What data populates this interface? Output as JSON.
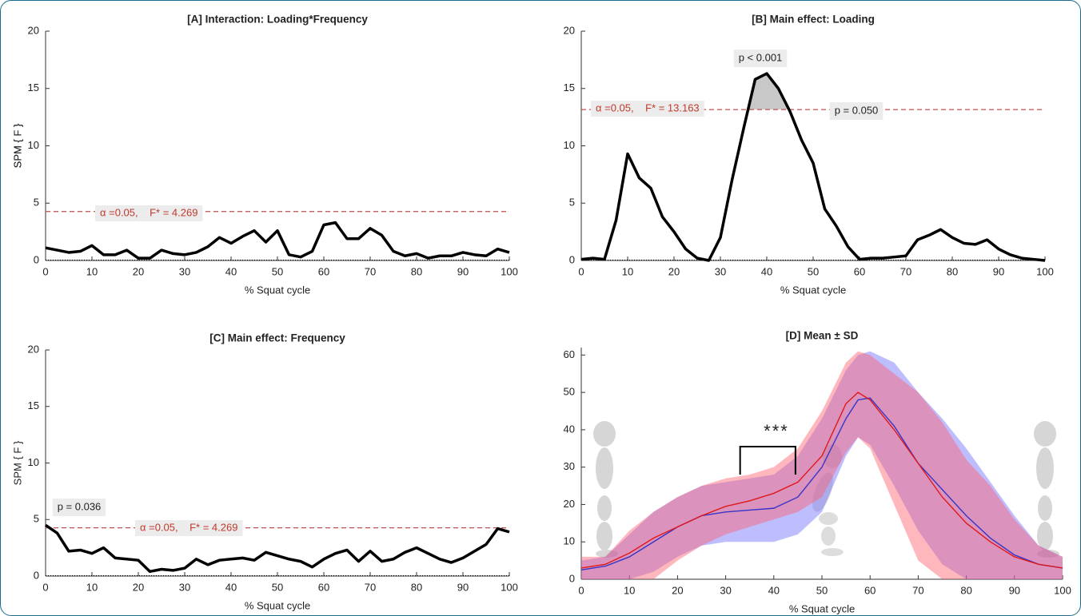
{
  "chart_data": [
    {
      "type": "line",
      "title": "[A] Interaction: Loading*Frequency",
      "xlabel": "% Squat cycle",
      "ylabel": "SPM { F }",
      "x": [
        0,
        2.5,
        5,
        7.5,
        10,
        12.5,
        15,
        17.5,
        20,
        22.5,
        25,
        27.5,
        30,
        32.5,
        35,
        37.5,
        40,
        42.5,
        45,
        47.5,
        50,
        52.5,
        55,
        57.5,
        60,
        62.5,
        65,
        67.5,
        70,
        72.5,
        75,
        77.5,
        80,
        82.5,
        85,
        87.5,
        90,
        92.5,
        95,
        97.5,
        100
      ],
      "values": [
        1.1,
        0.9,
        0.7,
        0.8,
        1.3,
        0.5,
        0.5,
        0.9,
        0.2,
        0.2,
        0.9,
        0.6,
        0.5,
        0.7,
        1.2,
        2.0,
        1.5,
        2.1,
        2.6,
        1.6,
        2.6,
        0.5,
        0.3,
        0.8,
        3.1,
        3.3,
        1.9,
        1.9,
        2.8,
        2.2,
        0.8,
        0.4,
        0.6,
        0.2,
        0.4,
        0.4,
        0.7,
        0.5,
        0.4,
        1.0,
        0.7
      ],
      "color": "#000000",
      "threshold": 4.269,
      "threshold_label": "α =0.05,    F* = 4.269",
      "annotations": [],
      "xlim": [
        0,
        100
      ],
      "xticks": [
        0,
        10,
        20,
        30,
        40,
        50,
        60,
        70,
        80,
        90,
        100
      ],
      "ylim": [
        0,
        20
      ],
      "yticks": [
        0,
        5,
        10,
        15,
        20
      ]
    },
    {
      "type": "line",
      "title": "[B] Main effect: Loading",
      "xlabel": "% Squat cycle",
      "ylabel": "SPM { F }",
      "x": [
        0,
        2.5,
        5,
        7.5,
        10,
        12.5,
        15,
        17.5,
        20,
        22.5,
        25,
        27.5,
        30,
        32.5,
        35,
        37.5,
        40,
        42.5,
        45,
        47.5,
        50,
        52.5,
        55,
        57.5,
        60,
        62.5,
        65,
        67.5,
        70,
        72.5,
        75,
        77.5,
        80,
        82.5,
        85,
        87.5,
        90,
        92.5,
        95,
        97.5,
        100
      ],
      "values": [
        0.1,
        0.2,
        0.1,
        3.5,
        9.3,
        7.2,
        6.3,
        3.8,
        2.5,
        1.0,
        0.2,
        0.0,
        2.0,
        7.0,
        11.5,
        15.8,
        16.3,
        15.0,
        13.0,
        10.5,
        8.5,
        4.5,
        3.0,
        1.2,
        0.1,
        0.2,
        0.2,
        0.3,
        0.4,
        1.8,
        2.2,
        2.7,
        2.0,
        1.5,
        1.4,
        1.8,
        1.0,
        0.5,
        0.2,
        0.1,
        0.0
      ],
      "color": "#000000",
      "threshold": 13.163,
      "threshold_label": "α =0.05,    F* = 13.163",
      "annotations": [
        "p < 0.001",
        "p = 0.050"
      ],
      "xlim": [
        0,
        100
      ],
      "xticks": [
        0,
        10,
        20,
        30,
        40,
        50,
        60,
        70,
        80,
        90,
        100
      ],
      "ylim": [
        0,
        20
      ],
      "yticks": [
        0,
        5,
        10,
        15,
        20
      ]
    },
    {
      "type": "line",
      "title": "[C] Main effect: Frequency",
      "xlabel": "% Squat cycle",
      "ylabel": "SPM { F }",
      "x": [
        0,
        2.5,
        5,
        7.5,
        10,
        12.5,
        15,
        17.5,
        20,
        22.5,
        25,
        27.5,
        30,
        32.5,
        35,
        37.5,
        40,
        42.5,
        45,
        47.5,
        50,
        52.5,
        55,
        57.5,
        60,
        62.5,
        65,
        67.5,
        70,
        72.5,
        75,
        77.5,
        80,
        82.5,
        85,
        87.5,
        90,
        92.5,
        95,
        97.5,
        100
      ],
      "values": [
        4.5,
        3.8,
        2.2,
        2.3,
        2.0,
        2.5,
        1.6,
        1.5,
        1.4,
        0.4,
        0.6,
        0.5,
        0.7,
        1.5,
        1.0,
        1.4,
        1.5,
        1.6,
        1.4,
        2.1,
        1.8,
        1.5,
        1.3,
        0.8,
        1.5,
        2.0,
        2.3,
        1.3,
        2.2,
        1.3,
        1.5,
        2.1,
        2.5,
        2.0,
        1.5,
        1.2,
        1.6,
        2.2,
        2.8,
        4.2,
        3.9
      ],
      "color": "#000000",
      "threshold": 4.269,
      "threshold_label": "α =0.05,    F* = 4.269",
      "annotations": [
        "p = 0.036"
      ],
      "xlim": [
        0,
        100
      ],
      "xticks": [
        0,
        10,
        20,
        30,
        40,
        50,
        60,
        70,
        80,
        90,
        100
      ],
      "ylim": [
        0,
        20
      ],
      "yticks": [
        0,
        5,
        10,
        15,
        20
      ]
    },
    {
      "type": "line",
      "title": "[D] Mean ± SD",
      "xlabel": "% Squat cycle",
      "annotations": [
        "***"
      ],
      "x": [
        0,
        5,
        10,
        15,
        20,
        25,
        30,
        35,
        40,
        45,
        50,
        55,
        57.5,
        60,
        65,
        70,
        75,
        80,
        85,
        90,
        95,
        100
      ],
      "series": [
        {
          "color": "#3535c8",
          "band_color": "rgba(110,110,255,0.45)",
          "values": [
            2.5,
            3.5,
            6,
            10,
            14,
            17,
            18,
            18.5,
            19,
            22,
            30,
            43,
            48,
            48.5,
            41,
            31,
            24,
            17,
            11,
            6.5,
            4,
            3
          ],
          "lower": [
            0,
            0,
            0,
            2,
            6,
            9,
            10,
            10,
            10,
            12,
            18,
            33,
            38,
            36,
            25,
            13,
            4,
            0,
            0,
            0,
            0,
            0
          ],
          "upper": [
            5,
            6,
            12,
            18,
            22,
            25,
            26,
            27,
            28,
            33,
            43,
            56,
            60,
            61,
            58,
            50,
            43,
            35,
            26,
            17,
            9,
            6
          ]
        },
        {
          "color": "#e01818",
          "band_color": "rgba(255,95,110,0.45)",
          "values": [
            3,
            4,
            7,
            11,
            14,
            17,
            19.5,
            21,
            23,
            26,
            33,
            47,
            50,
            48,
            40,
            31,
            22,
            15,
            10,
            6,
            4,
            3
          ],
          "lower": [
            0,
            0,
            0,
            0,
            5,
            9,
            12,
            14,
            16,
            18,
            22,
            34,
            38,
            35,
            20,
            5,
            0,
            0,
            0,
            0,
            0,
            0
          ],
          "upper": [
            6,
            6,
            13,
            18,
            22,
            25,
            27,
            28,
            30,
            35,
            45,
            58,
            61,
            60,
            55,
            50,
            42,
            32,
            25,
            16,
            9,
            6
          ]
        }
      ],
      "xlim": [
        0,
        100
      ],
      "xticks": [
        0,
        10,
        20,
        30,
        40,
        50,
        60,
        70,
        80,
        90,
        100
      ],
      "ylim": [
        0,
        62
      ],
      "yticks": [
        0,
        10,
        20,
        30,
        40,
        50,
        60
      ]
    }
  ]
}
